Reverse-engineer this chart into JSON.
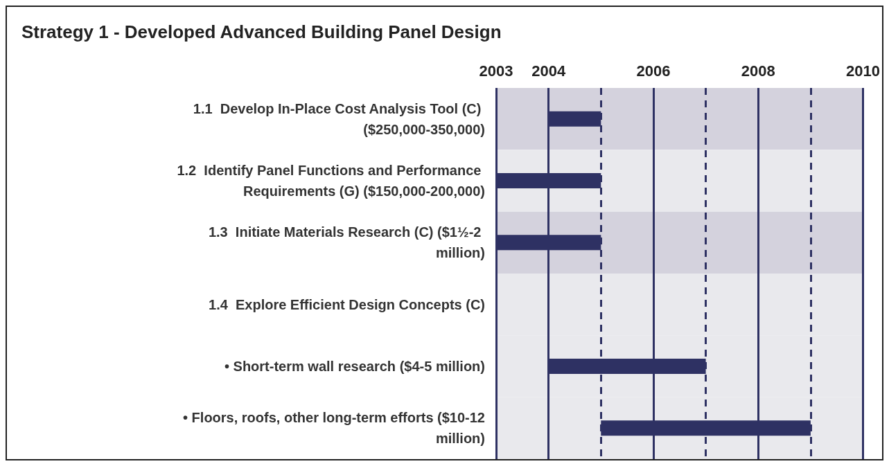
{
  "chart_data": {
    "type": "bar",
    "orientation": "horizontal",
    "title": "Strategy 1 - Developed Advanced Building Panel Design",
    "categories": [
      "1.1  Develop In-Place Cost Analysis Tool (C) ($250,000-350,000)",
      "1.2  Identify Panel Functions and Performance Requirements (G) ($150,000-200,000)",
      "1.3  Initiate Materials Research (C) ($1½-2 million)",
      "1.4  Explore Efficient Design Concepts (C)",
      "• Short-term wall research ($4-5 million)",
      "• Floors, roofs, other long-term efforts ($10-12 million)"
    ],
    "base": [
      2004,
      2003,
      2003,
      null,
      2004,
      2005
    ],
    "values": [
      1,
      2,
      2,
      null,
      3,
      4
    ],
    "color": "#2e3163",
    "xlim": [
      2003,
      2010
    ],
    "xticks": [
      2003,
      2004,
      {
        "value": 2005,
        "label": null
      },
      2006,
      {
        "value": 2007,
        "label": null
      },
      2008,
      {
        "value": 2009,
        "label": null
      },
      2010
    ],
    "grid": "x"
  }
}
